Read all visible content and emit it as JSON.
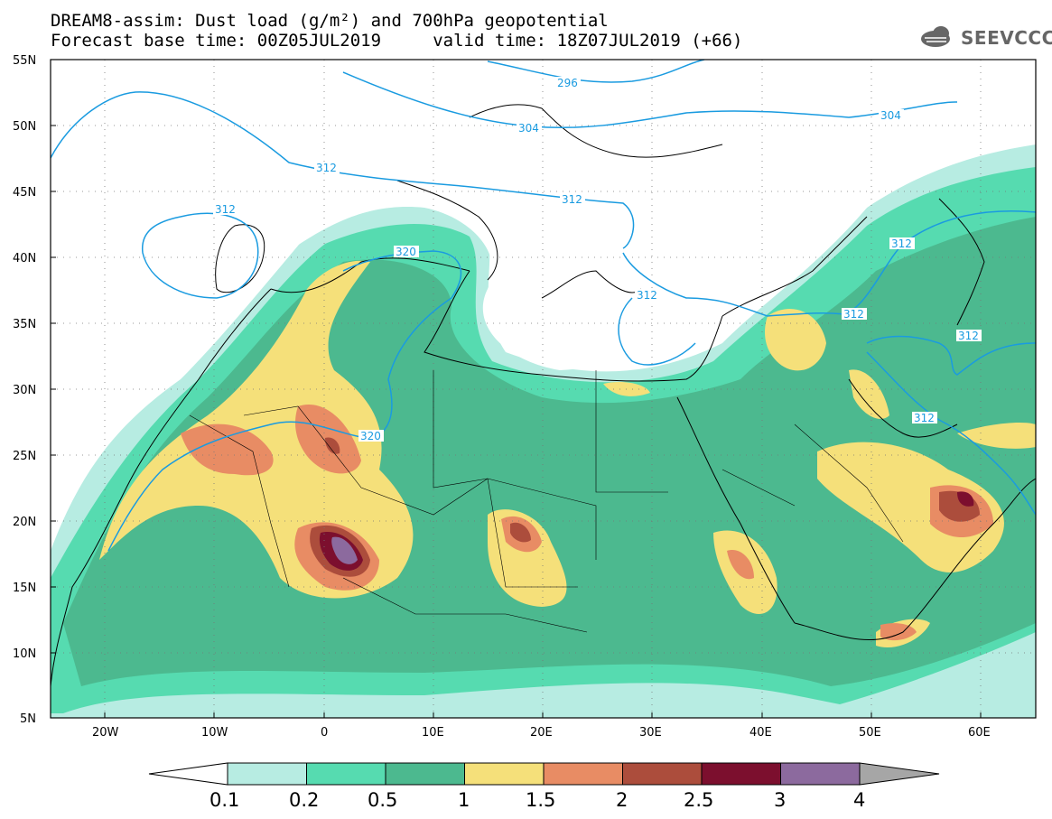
{
  "header": {
    "title_line1": "DREAM8-assim: Dust load (g/m²) and 700hPa geopotential",
    "title_line2": "Forecast base time: 00Z05JUL2019     valid time: 18Z07JUL2019 (+66)",
    "logo_text": "SEEVCCC",
    "logo_icon": "cloud-icon"
  },
  "map": {
    "lon_range": [
      -25,
      65
    ],
    "lat_range": [
      5,
      55
    ],
    "lat_ticks": [
      "55N",
      "50N",
      "45N",
      "40N",
      "35N",
      "30N",
      "25N",
      "20N",
      "15N",
      "10N",
      "5N"
    ],
    "lon_ticks": [
      "20W",
      "10W",
      "0",
      "10E",
      "20E",
      "30E",
      "40E",
      "50E",
      "60E"
    ],
    "grid": "dotted",
    "colors": {
      "land": "#ffffff",
      "coast": "#000000",
      "contour": "#1a9be0",
      "frame": "#000000"
    },
    "contour_labels": [
      "296",
      "304",
      "304",
      "312",
      "312",
      "312",
      "312",
      "312",
      "312",
      "312",
      "312",
      "320",
      "320"
    ]
  },
  "colorbar": {
    "labels": [
      "0.1",
      "0.2",
      "0.5",
      "1",
      "1.5",
      "2",
      "2.5",
      "3",
      "4"
    ],
    "colors": [
      "#b7ece2",
      "#56dbb0",
      "#4cb98f",
      "#f5e07a",
      "#e88c64",
      "#ac4d3c",
      "#7c0f2e",
      "#8c6a9e"
    ],
    "under_color": "#ffffff",
    "over_color": "#a6a6a6"
  }
}
